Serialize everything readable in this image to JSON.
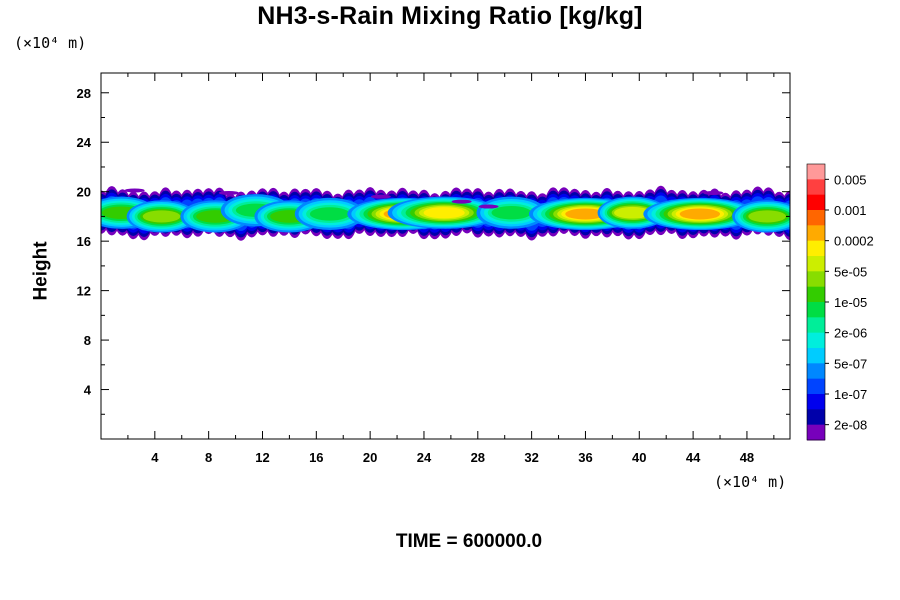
{
  "title": "NH3-s-Rain Mixing Ratio [kg/kg]",
  "y_unit_label": "(×10⁴ m)",
  "x_unit_label": "(×10⁴ m)",
  "time_label": "TIME = 600000.0",
  "chart_data": {
    "type": "contour",
    "title": "NH3-s-Rain Mixing Ratio [kg/kg]",
    "xlabel": "",
    "ylabel": "Height",
    "xlim": [
      0,
      51.2
    ],
    "ylim": [
      0,
      29.6
    ],
    "x_ticks": [
      4,
      8,
      12,
      16,
      20,
      24,
      28,
      32,
      36,
      40,
      44,
      48
    ],
    "y_ticks": [
      4,
      8,
      12,
      16,
      20,
      24,
      28
    ],
    "colorbar": {
      "labels": [
        "0.005",
        "0.001",
        "0.0002",
        "5e-05",
        "1e-05",
        "2e-06",
        "5e-07",
        "1e-07",
        "2e-08"
      ],
      "colors_top_to_bottom": [
        "#ff9999",
        "#ff4040",
        "#ff0000",
        "#ff6600",
        "#ffaa00",
        "#ffee00",
        "#ccee00",
        "#88dd00",
        "#33cc00",
        "#00dd44",
        "#00ee99",
        "#00eedd",
        "#00ccff",
        "#0088ff",
        "#0044ff",
        "#0000ee",
        "#0000aa",
        "#7700bb"
      ]
    },
    "field": {
      "description_band_km": [
        16.5,
        20.0
      ],
      "cells": [
        {
          "x": 1.5,
          "y": 18.3,
          "level": 9
        },
        {
          "x": 4.5,
          "y": 18.0,
          "level": 10
        },
        {
          "x": 8.5,
          "y": 18.0,
          "level": 9
        },
        {
          "x": 11.5,
          "y": 18.5,
          "level": 8
        },
        {
          "x": 14.0,
          "y": 18.0,
          "level": 9
        },
        {
          "x": 17.0,
          "y": 18.2,
          "level": 8
        },
        {
          "x": 22.5,
          "y": 18.2,
          "level": 13
        },
        {
          "x": 25.5,
          "y": 18.3,
          "level": 12
        },
        {
          "x": 30.5,
          "y": 18.3,
          "level": 8
        },
        {
          "x": 36.0,
          "y": 18.2,
          "level": 13
        },
        {
          "x": 39.5,
          "y": 18.3,
          "level": 11
        },
        {
          "x": 44.5,
          "y": 18.2,
          "level": 13
        },
        {
          "x": 49.5,
          "y": 18.0,
          "level": 10
        }
      ]
    }
  }
}
